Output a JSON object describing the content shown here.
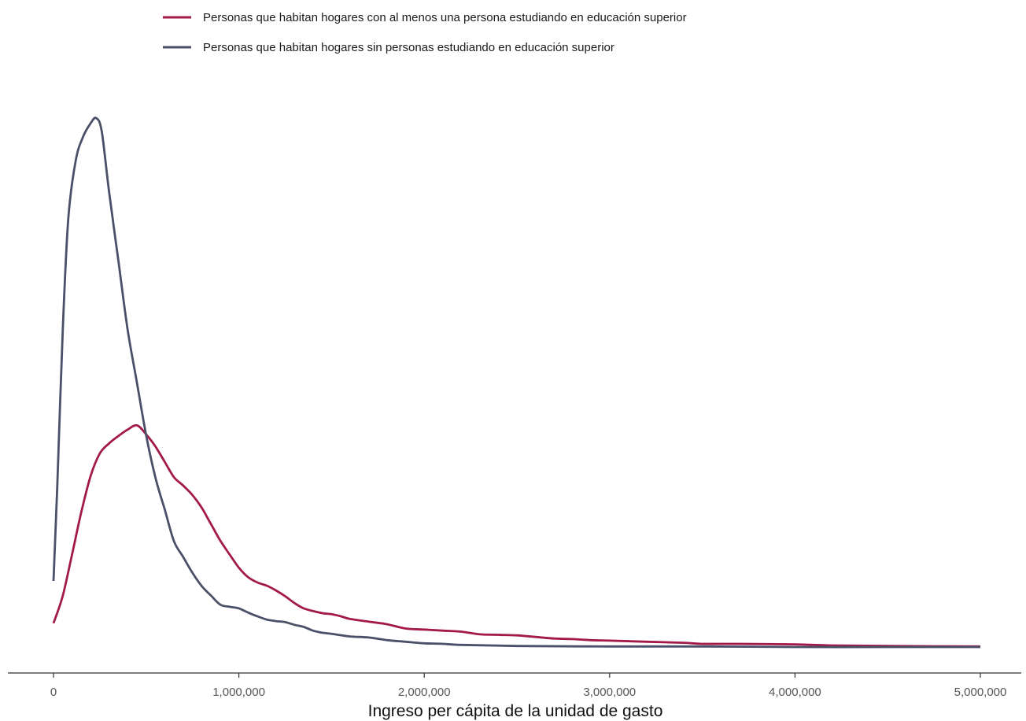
{
  "chart_data": {
    "type": "line",
    "title": "",
    "xlabel": "Ingreso per cápita de la unidad de gasto",
    "ylabel": "",
    "xlim": [
      0,
      5000000
    ],
    "ylim": [
      0,
      1.0
    ],
    "grid": false,
    "legend_position": "top",
    "x_ticks": [
      0,
      1000000,
      2000000,
      3000000,
      4000000,
      5000000
    ],
    "x_tick_labels": [
      "0",
      "1,000,000",
      "2,000,000",
      "3,000,000",
      "4,000,000",
      "5,000,000"
    ],
    "series": [
      {
        "name": "Personas que habitan hogares con al menos una persona estudiando en educación superior",
        "color": "#a31a4a",
        "x": [
          0,
          50000,
          100000,
          150000,
          200000,
          250000,
          300000,
          350000,
          400000,
          450000,
          500000,
          550000,
          600000,
          650000,
          700000,
          750000,
          800000,
          850000,
          900000,
          950000,
          1000000,
          1050000,
          1100000,
          1150000,
          1200000,
          1250000,
          1300000,
          1350000,
          1400000,
          1450000,
          1500000,
          1550000,
          1600000,
          1700000,
          1800000,
          1900000,
          2000000,
          2100000,
          2200000,
          2300000,
          2400000,
          2500000,
          2600000,
          2700000,
          2800000,
          2900000,
          3000000,
          3200000,
          3400000,
          3500000,
          3700000,
          4000000,
          4200000,
          4500000,
          5000000
        ],
        "values": [
          0.045,
          0.097,
          0.175,
          0.255,
          0.323,
          0.366,
          0.385,
          0.399,
          0.411,
          0.419,
          0.402,
          0.379,
          0.35,
          0.321,
          0.305,
          0.287,
          0.263,
          0.232,
          0.201,
          0.175,
          0.15,
          0.132,
          0.122,
          0.116,
          0.107,
          0.096,
          0.083,
          0.073,
          0.068,
          0.064,
          0.062,
          0.058,
          0.053,
          0.048,
          0.043,
          0.035,
          0.033,
          0.031,
          0.029,
          0.024,
          0.023,
          0.022,
          0.019,
          0.016,
          0.015,
          0.013,
          0.012,
          0.01,
          0.008,
          0.006,
          0.006,
          0.005,
          0.003,
          0.002,
          0.001
        ]
      },
      {
        "name": "Personas que habitan hogares sin personas estudiando en educación superior",
        "color": "#4a5068",
        "x": [
          0,
          20000,
          50000,
          80000,
          120000,
          160000,
          200000,
          230000,
          260000,
          300000,
          350000,
          400000,
          450000,
          500000,
          550000,
          600000,
          650000,
          700000,
          750000,
          800000,
          850000,
          900000,
          950000,
          1000000,
          1050000,
          1100000,
          1150000,
          1200000,
          1250000,
          1300000,
          1350000,
          1400000,
          1450000,
          1500000,
          1600000,
          1700000,
          1800000,
          1900000,
          2000000,
          2100000,
          2200000,
          2500000,
          3000000,
          3500000,
          4000000,
          4500000,
          5000000
        ],
        "values": [
          0.125,
          0.3,
          0.6,
          0.81,
          0.92,
          0.965,
          0.99,
          1.0,
          0.975,
          0.86,
          0.73,
          0.6,
          0.5,
          0.4,
          0.32,
          0.26,
          0.2,
          0.17,
          0.14,
          0.115,
          0.097,
          0.08,
          0.076,
          0.073,
          0.065,
          0.058,
          0.052,
          0.049,
          0.047,
          0.042,
          0.038,
          0.031,
          0.027,
          0.025,
          0.02,
          0.018,
          0.013,
          0.01,
          0.007,
          0.006,
          0.004,
          0.002,
          0.001,
          0.001,
          0.0,
          0.0,
          0.0
        ]
      }
    ]
  }
}
